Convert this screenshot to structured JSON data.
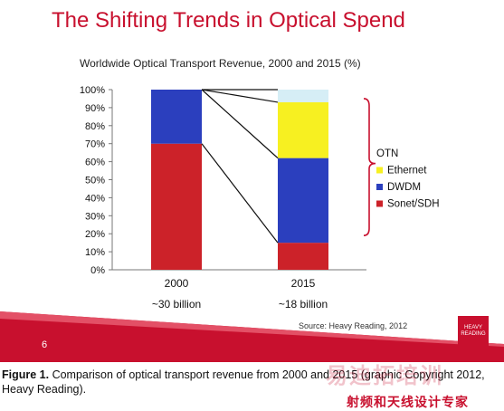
{
  "slide": {
    "title": "The Shifting Trends in Optical Spend",
    "page_number": "6",
    "source": "Source: Heavy Reading, 2012",
    "logo_text": [
      "HEAVY",
      "READING"
    ]
  },
  "colors": {
    "title": "#c8102e",
    "sonet_sdh": "#cc2229",
    "dwdm": "#2b3fbe",
    "ethernet": "#f7f021",
    "otn": "#d6eef6",
    "bracket": "#c8102e",
    "swoosh": "#c8102e"
  },
  "caption": {
    "label": "Figure 1.",
    "text": " Comparison of optical transport revenue from 2000 and 2015 (graphic Copyright 2012, Heavy Reading)."
  },
  "watermark": {
    "english": "易迪拓培训",
    "chinese": "射频和天线设计专家"
  },
  "chart_data": {
    "type": "bar",
    "stacked": true,
    "title": "Worldwide Optical Transport Revenue, 2000 and 2015 (%)",
    "categories": [
      "2000",
      "2015"
    ],
    "category_sublabels": [
      "~30 billion",
      "~18 billion"
    ],
    "series": [
      {
        "name": "Sonet/SDH",
        "values": [
          70,
          15
        ]
      },
      {
        "name": "DWDM",
        "values": [
          30,
          47
        ]
      },
      {
        "name": "Ethernet",
        "values": [
          0,
          31
        ]
      },
      {
        "name": "OTN",
        "values": [
          0,
          7
        ]
      }
    ],
    "legend_order": [
      "OTN",
      "Ethernet",
      "DWDM",
      "Sonet/SDH"
    ],
    "y_ticks": [
      "0%",
      "10%",
      "20%",
      "30%",
      "40%",
      "50%",
      "60%",
      "70%",
      "80%",
      "90%",
      "100%"
    ],
    "ylim": [
      0,
      100
    ],
    "grid": false,
    "legend_position": "right"
  }
}
